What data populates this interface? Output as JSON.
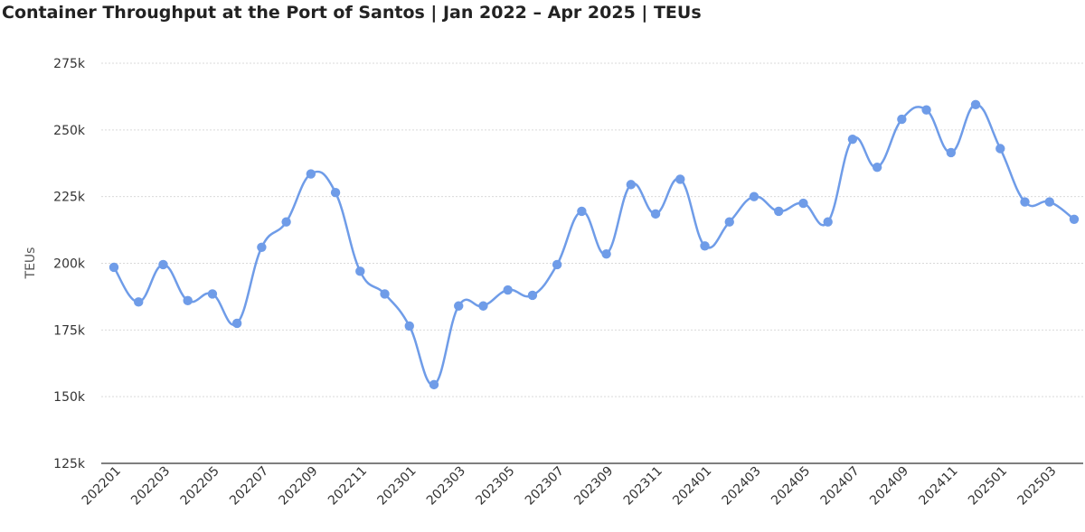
{
  "chart_data": {
    "type": "line",
    "title": "Container Throughput at the Port of Santos | Jan 2022 – Apr 2025 | TEUs",
    "xlabel": "",
    "ylabel": "TEUs",
    "ylim": [
      125000,
      275000
    ],
    "yticks": [
      125000,
      150000,
      175000,
      200000,
      225000,
      250000,
      275000
    ],
    "ytick_labels": [
      "125k",
      "150k",
      "175k",
      "200k",
      "225k",
      "250k",
      "275k"
    ],
    "x_tick_labels": [
      "202201",
      "202203",
      "202205",
      "202207",
      "202209",
      "202211",
      "202301",
      "202303",
      "202305",
      "202307",
      "202309",
      "202311",
      "202401",
      "202403",
      "202405",
      "202407",
      "202409",
      "202411",
      "202501",
      "202503"
    ],
    "grid": true,
    "color": "#6f9ce8",
    "series": [
      {
        "categories": [
          "202201",
          "202202",
          "202203",
          "202204",
          "202205",
          "202206",
          "202207",
          "202208",
          "202209",
          "202210",
          "202211",
          "202212",
          "202301",
          "202302",
          "202303",
          "202304",
          "202305",
          "202306",
          "202307",
          "202308",
          "202309",
          "202310",
          "202311",
          "202312",
          "202401",
          "202402",
          "202403",
          "202404",
          "202405",
          "202406",
          "202407",
          "202408",
          "202409",
          "202410",
          "202411",
          "202412",
          "202501",
          "202502",
          "202503",
          "202504"
        ],
        "values": [
          198500,
          185500,
          199500,
          186000,
          188500,
          177500,
          206000,
          215500,
          233500,
          226500,
          197000,
          188500,
          176500,
          154500,
          184000,
          184000,
          190000,
          188000,
          199500,
          219500,
          203500,
          229500,
          218500,
          231500,
          206500,
          215500,
          225000,
          219500,
          222500,
          215500,
          246500,
          236000,
          254000,
          257500,
          241500,
          259500,
          243000,
          223000,
          223000,
          216500
        ]
      }
    ]
  }
}
